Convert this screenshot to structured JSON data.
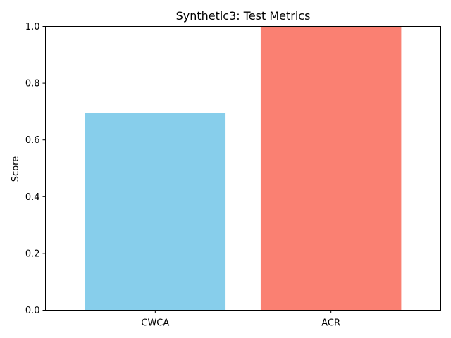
{
  "chart_data": {
    "type": "bar",
    "title": "Synthetic3: Test Metrics",
    "xlabel": "",
    "ylabel": "Score",
    "categories": [
      "CWCA",
      "ACR"
    ],
    "values": [
      0.695,
      1.0
    ],
    "colors": [
      "#87ceeb",
      "#fa8072"
    ],
    "ylim": [
      0,
      1.0
    ],
    "yticks": [
      "0.0",
      "0.2",
      "0.4",
      "0.6",
      "0.8",
      "1.0"
    ],
    "grid": false,
    "legend": false
  }
}
